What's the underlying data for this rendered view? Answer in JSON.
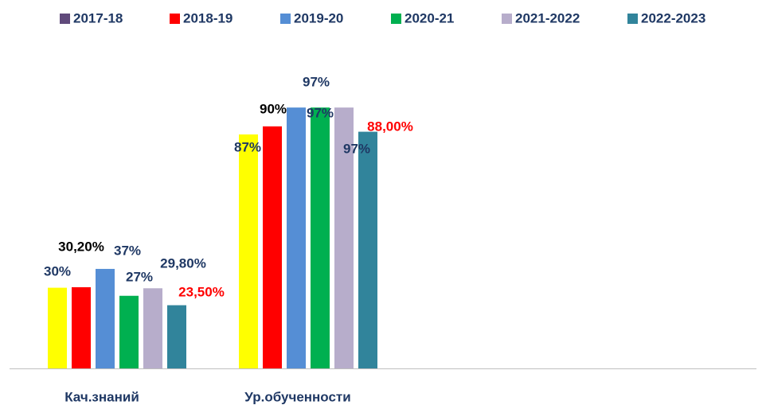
{
  "chart_data": {
    "type": "bar",
    "categories": [
      "Кач.знаний",
      "Ур.обученности"
    ],
    "ylim": [
      0,
      100
    ],
    "series": [
      {
        "name": "2017-18",
        "color": "#ffff00",
        "legend_color": "#604a7b",
        "label_color": "#1f3864",
        "values": [
          30,
          87
        ],
        "value_labels": [
          "30%",
          "87%"
        ]
      },
      {
        "name": "2018-19",
        "color": "#ff0000",
        "label_color": "#000000",
        "values": [
          30.2,
          90
        ],
        "value_labels": [
          "30,20%",
          "90%"
        ]
      },
      {
        "name": "2019-20",
        "color": "#558ed5",
        "label_color": "#1f3864",
        "values": [
          37,
          97
        ],
        "value_labels": [
          "37%",
          "97%"
        ]
      },
      {
        "name": "2020-21",
        "color": "#00b050",
        "label_color": "#1f3864",
        "values": [
          27,
          97
        ],
        "value_labels": [
          "27%",
          "97%"
        ]
      },
      {
        "name": "2021-2022",
        "color": "#b7adcb",
        "label_color": "#1f3864",
        "values": [
          29.8,
          97
        ],
        "value_labels": [
          "29,80%",
          "97%"
        ]
      },
      {
        "name": "2022-2023",
        "color": "#31849b",
        "label_color": "#ff0000",
        "values": [
          23.5,
          88
        ],
        "value_labels": [
          "23,50%",
          "88,00%"
        ]
      }
    ]
  }
}
